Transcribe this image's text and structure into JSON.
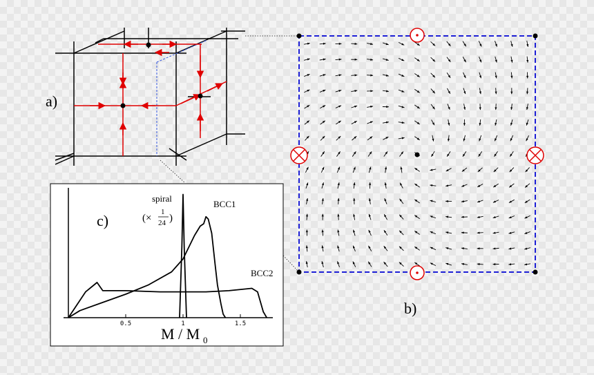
{
  "panel_a": {
    "label": "a)"
  },
  "panel_b": {
    "label": "b)",
    "side_symbol": "⊗",
    "vector_field": "skyrmion-like swirl around central dot"
  },
  "panel_c": {
    "label": "c)",
    "spiral_label": "spiral",
    "scale_prefix": "(×",
    "scale_numerator": "1",
    "scale_denominator": "24",
    "scale_suffix": ")",
    "xlabel_main": "M / M",
    "xlabel_sub": "0"
  },
  "chart_data": {
    "type": "line",
    "xlabel": "M / M0",
    "ylabel": "",
    "xticks": [
      "0.5",
      "1",
      "1.5"
    ],
    "xlim": [
      0,
      1.8
    ],
    "series": [
      {
        "name": "BCC1",
        "x": [
          0.0,
          0.1,
          0.3,
          0.5,
          0.7,
          0.9,
          1.0,
          1.1,
          1.15,
          1.18,
          1.2,
          1.22,
          1.25,
          1.28,
          1.3,
          1.33,
          1.35,
          1.37
        ],
        "y": [
          0.0,
          0.06,
          0.13,
          0.2,
          0.28,
          0.39,
          0.5,
          0.7,
          0.78,
          0.8,
          0.86,
          0.84,
          0.72,
          0.45,
          0.28,
          0.12,
          0.03,
          0.0
        ]
      },
      {
        "name": "BCC2",
        "x": [
          0.0,
          0.15,
          0.25,
          0.3,
          0.5,
          0.8,
          1.0,
          1.2,
          1.4,
          1.6,
          1.65,
          1.7,
          1.73
        ],
        "y": [
          0.0,
          0.22,
          0.3,
          0.23,
          0.23,
          0.22,
          0.22,
          0.22,
          0.23,
          0.25,
          0.22,
          0.05,
          0.0
        ]
      },
      {
        "name": "spiral",
        "x": [
          0.97,
          0.99,
          1.0,
          1.01,
          1.03
        ],
        "y": [
          0.0,
          0.6,
          1.05,
          0.6,
          0.0
        ]
      }
    ]
  },
  "colors": {
    "field_border": "#1d1fd6",
    "cube_arrows": "#e00000",
    "inset_box": "#000000"
  }
}
